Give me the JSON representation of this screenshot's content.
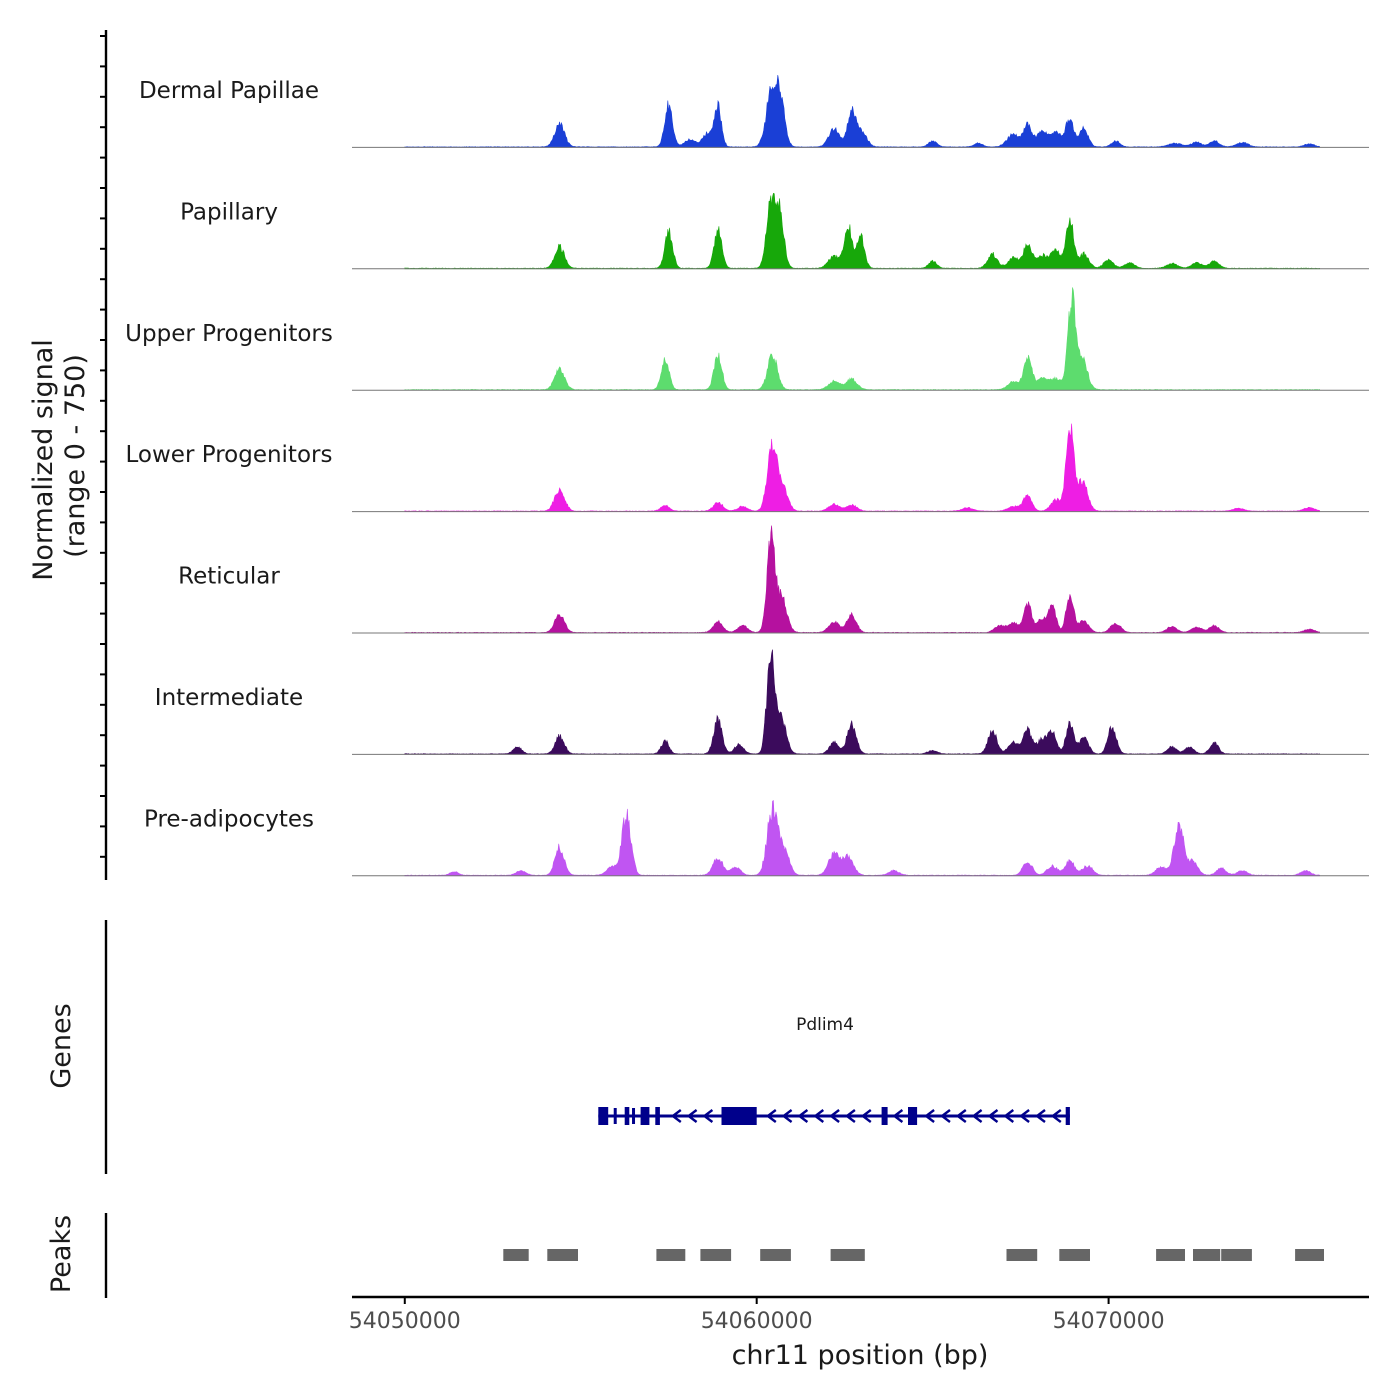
{
  "chart_data": {
    "type": "area",
    "title": "",
    "xlabel": "chr11 position (bp)",
    "ylabel_line1": "Normalized signal",
    "ylabel_line2": "(range 0 - 750)",
    "xlim": [
      54048500,
      54077400
    ],
    "x_ticks": [
      54050000,
      54060000,
      54070000
    ],
    "x_tick_labels": [
      "54050000",
      "54060000",
      "54070000"
    ],
    "signal_range": [
      0,
      750
    ],
    "tracks": [
      {
        "name": "Dermal Papillae",
        "color": "#1a3fd6",
        "peaks": [
          {
            "pos": 54054400,
            "height": 190,
            "width": 140
          },
          {
            "pos": 54057500,
            "height": 350,
            "width": 110
          },
          {
            "pos": 54058100,
            "height": 60,
            "width": 160
          },
          {
            "pos": 54058600,
            "height": 120,
            "width": 140
          },
          {
            "pos": 54058900,
            "height": 330,
            "width": 100
          },
          {
            "pos": 54060450,
            "height": 520,
            "width": 160
          },
          {
            "pos": 54060700,
            "height": 300,
            "width": 120
          },
          {
            "pos": 54062200,
            "height": 150,
            "width": 150
          },
          {
            "pos": 54062700,
            "height": 300,
            "width": 120
          },
          {
            "pos": 54063000,
            "height": 120,
            "width": 140
          },
          {
            "pos": 54065000,
            "height": 50,
            "width": 120
          },
          {
            "pos": 54066300,
            "height": 30,
            "width": 120
          },
          {
            "pos": 54067300,
            "height": 110,
            "width": 180
          },
          {
            "pos": 54067700,
            "height": 170,
            "width": 120
          },
          {
            "pos": 54068100,
            "height": 120,
            "width": 160
          },
          {
            "pos": 54068500,
            "height": 120,
            "width": 160
          },
          {
            "pos": 54068900,
            "height": 250,
            "width": 110
          },
          {
            "pos": 54069300,
            "height": 160,
            "width": 120
          },
          {
            "pos": 54070200,
            "height": 50,
            "width": 120
          },
          {
            "pos": 54071900,
            "height": 30,
            "width": 200
          },
          {
            "pos": 54072500,
            "height": 40,
            "width": 140
          },
          {
            "pos": 54073000,
            "height": 50,
            "width": 140
          },
          {
            "pos": 54073800,
            "height": 40,
            "width": 160
          },
          {
            "pos": 54075700,
            "height": 25,
            "width": 140
          }
        ]
      },
      {
        "name": "Papillary",
        "color": "#17a80a",
        "peaks": [
          {
            "pos": 54054400,
            "height": 180,
            "width": 140
          },
          {
            "pos": 54057500,
            "height": 310,
            "width": 110
          },
          {
            "pos": 54058900,
            "height": 320,
            "width": 110
          },
          {
            "pos": 54060400,
            "height": 560,
            "width": 120
          },
          {
            "pos": 54060650,
            "height": 470,
            "width": 120
          },
          {
            "pos": 54062200,
            "height": 100,
            "width": 160
          },
          {
            "pos": 54062600,
            "height": 360,
            "width": 110
          },
          {
            "pos": 54062950,
            "height": 280,
            "width": 110
          },
          {
            "pos": 54065000,
            "height": 60,
            "width": 120
          },
          {
            "pos": 54066700,
            "height": 120,
            "width": 140
          },
          {
            "pos": 54067300,
            "height": 90,
            "width": 160
          },
          {
            "pos": 54067700,
            "height": 200,
            "width": 120
          },
          {
            "pos": 54068100,
            "height": 110,
            "width": 160
          },
          {
            "pos": 54068500,
            "height": 160,
            "width": 130
          },
          {
            "pos": 54068900,
            "height": 400,
            "width": 110
          },
          {
            "pos": 54069300,
            "height": 120,
            "width": 140
          },
          {
            "pos": 54070000,
            "height": 70,
            "width": 140
          },
          {
            "pos": 54070600,
            "height": 50,
            "width": 140
          },
          {
            "pos": 54071800,
            "height": 40,
            "width": 160
          },
          {
            "pos": 54072500,
            "height": 50,
            "width": 140
          },
          {
            "pos": 54073000,
            "height": 60,
            "width": 140
          }
        ]
      },
      {
        "name": "Upper Progenitors",
        "color": "#5ddc6e",
        "peaks": [
          {
            "pos": 54054400,
            "height": 180,
            "width": 140
          },
          {
            "pos": 54057400,
            "height": 270,
            "width": 110
          },
          {
            "pos": 54058900,
            "height": 300,
            "width": 110
          },
          {
            "pos": 54060450,
            "height": 290,
            "width": 140
          },
          {
            "pos": 54062200,
            "height": 70,
            "width": 160
          },
          {
            "pos": 54062700,
            "height": 90,
            "width": 160
          },
          {
            "pos": 54067300,
            "height": 70,
            "width": 160
          },
          {
            "pos": 54067700,
            "height": 280,
            "width": 110
          },
          {
            "pos": 54068100,
            "height": 90,
            "width": 160
          },
          {
            "pos": 54068500,
            "height": 90,
            "width": 160
          },
          {
            "pos": 54068950,
            "height": 750,
            "width": 110
          },
          {
            "pos": 54069250,
            "height": 250,
            "width": 150
          }
        ]
      },
      {
        "name": "Lower Progenitors",
        "color": "#ee1ee4",
        "peaks": [
          {
            "pos": 54054400,
            "height": 190,
            "width": 140
          },
          {
            "pos": 54057400,
            "height": 50,
            "width": 120
          },
          {
            "pos": 54058900,
            "height": 70,
            "width": 140
          },
          {
            "pos": 54059600,
            "height": 40,
            "width": 140
          },
          {
            "pos": 54060450,
            "height": 570,
            "width": 140
          },
          {
            "pos": 54060750,
            "height": 180,
            "width": 140
          },
          {
            "pos": 54062200,
            "height": 60,
            "width": 150
          },
          {
            "pos": 54062700,
            "height": 50,
            "width": 150
          },
          {
            "pos": 54066000,
            "height": 30,
            "width": 150
          },
          {
            "pos": 54067300,
            "height": 40,
            "width": 160
          },
          {
            "pos": 54067700,
            "height": 140,
            "width": 120
          },
          {
            "pos": 54068500,
            "height": 100,
            "width": 140
          },
          {
            "pos": 54068900,
            "height": 690,
            "width": 110
          },
          {
            "pos": 54069250,
            "height": 250,
            "width": 150
          },
          {
            "pos": 54073700,
            "height": 25,
            "width": 150
          },
          {
            "pos": 54075700,
            "height": 30,
            "width": 150
          }
        ]
      },
      {
        "name": "Reticular",
        "color": "#b5119f",
        "peaks": [
          {
            "pos": 54054400,
            "height": 150,
            "width": 140
          },
          {
            "pos": 54058900,
            "height": 90,
            "width": 140
          },
          {
            "pos": 54059600,
            "height": 60,
            "width": 140
          },
          {
            "pos": 54060400,
            "height": 790,
            "width": 110
          },
          {
            "pos": 54060700,
            "height": 300,
            "width": 150
          },
          {
            "pos": 54062200,
            "height": 90,
            "width": 150
          },
          {
            "pos": 54062700,
            "height": 160,
            "width": 130
          },
          {
            "pos": 54066900,
            "height": 60,
            "width": 140
          },
          {
            "pos": 54067300,
            "height": 80,
            "width": 150
          },
          {
            "pos": 54067700,
            "height": 240,
            "width": 110
          },
          {
            "pos": 54068100,
            "height": 110,
            "width": 140
          },
          {
            "pos": 54068400,
            "height": 210,
            "width": 110
          },
          {
            "pos": 54068900,
            "height": 300,
            "width": 110
          },
          {
            "pos": 54069300,
            "height": 100,
            "width": 140
          },
          {
            "pos": 54070200,
            "height": 80,
            "width": 140
          },
          {
            "pos": 54071800,
            "height": 50,
            "width": 140
          },
          {
            "pos": 54072500,
            "height": 50,
            "width": 140
          },
          {
            "pos": 54073000,
            "height": 60,
            "width": 140
          },
          {
            "pos": 54075700,
            "height": 30,
            "width": 140
          }
        ]
      },
      {
        "name": "Intermediate",
        "color": "#3b0b5c",
        "peaks": [
          {
            "pos": 54053200,
            "height": 60,
            "width": 120
          },
          {
            "pos": 54054400,
            "height": 150,
            "width": 130
          },
          {
            "pos": 54057400,
            "height": 110,
            "width": 110
          },
          {
            "pos": 54058900,
            "height": 290,
            "width": 120
          },
          {
            "pos": 54059500,
            "height": 80,
            "width": 130
          },
          {
            "pos": 54060400,
            "height": 840,
            "width": 110
          },
          {
            "pos": 54060700,
            "height": 300,
            "width": 140
          },
          {
            "pos": 54062200,
            "height": 100,
            "width": 130
          },
          {
            "pos": 54062700,
            "height": 250,
            "width": 130
          },
          {
            "pos": 54065000,
            "height": 30,
            "width": 130
          },
          {
            "pos": 54066700,
            "height": 190,
            "width": 130
          },
          {
            "pos": 54067300,
            "height": 100,
            "width": 150
          },
          {
            "pos": 54067700,
            "height": 200,
            "width": 120
          },
          {
            "pos": 54068100,
            "height": 120,
            "width": 140
          },
          {
            "pos": 54068400,
            "height": 190,
            "width": 120
          },
          {
            "pos": 54068900,
            "height": 260,
            "width": 110
          },
          {
            "pos": 54069300,
            "height": 140,
            "width": 130
          },
          {
            "pos": 54070100,
            "height": 230,
            "width": 120
          },
          {
            "pos": 54071800,
            "height": 60,
            "width": 130
          },
          {
            "pos": 54072300,
            "height": 60,
            "width": 130
          },
          {
            "pos": 54073000,
            "height": 100,
            "width": 120
          }
        ]
      },
      {
        "name": "Pre-adipocytes",
        "color": "#c055f2",
        "peaks": [
          {
            "pos": 54051400,
            "height": 30,
            "width": 120
          },
          {
            "pos": 54053300,
            "height": 40,
            "width": 130
          },
          {
            "pos": 54054400,
            "height": 240,
            "width": 130
          },
          {
            "pos": 54055900,
            "height": 70,
            "width": 160
          },
          {
            "pos": 54056300,
            "height": 500,
            "width": 130
          },
          {
            "pos": 54058900,
            "height": 150,
            "width": 140
          },
          {
            "pos": 54059400,
            "height": 70,
            "width": 140
          },
          {
            "pos": 54060450,
            "height": 560,
            "width": 150
          },
          {
            "pos": 54060800,
            "height": 200,
            "width": 140
          },
          {
            "pos": 54062200,
            "height": 180,
            "width": 160
          },
          {
            "pos": 54062600,
            "height": 150,
            "width": 150
          },
          {
            "pos": 54063900,
            "height": 40,
            "width": 150
          },
          {
            "pos": 54067700,
            "height": 120,
            "width": 130
          },
          {
            "pos": 54068400,
            "height": 80,
            "width": 150
          },
          {
            "pos": 54068900,
            "height": 120,
            "width": 130
          },
          {
            "pos": 54069400,
            "height": 80,
            "width": 150
          },
          {
            "pos": 54071500,
            "height": 70,
            "width": 160
          },
          {
            "pos": 54072000,
            "height": 450,
            "width": 130
          },
          {
            "pos": 54072400,
            "height": 120,
            "width": 140
          },
          {
            "pos": 54073200,
            "height": 60,
            "width": 140
          },
          {
            "pos": 54073800,
            "height": 40,
            "width": 140
          },
          {
            "pos": 54075600,
            "height": 40,
            "width": 140
          }
        ]
      }
    ],
    "genes_label": "Genes",
    "gene": {
      "name": "Pdlim4",
      "start": 54055500,
      "end": 54068900,
      "strand": "-",
      "color": "#00008b",
      "exons": [
        [
          54055500,
          54055780
        ],
        [
          54056250,
          54056380
        ],
        [
          54056700,
          54056950
        ],
        [
          54057120,
          54057250
        ],
        [
          54059000,
          54060000
        ],
        [
          54063550,
          54063720
        ],
        [
          54064300,
          54064560
        ],
        [
          54068780,
          54068900
        ]
      ],
      "ticks": [
        54055980,
        54056500
      ]
    },
    "peaks_label": "Peaks",
    "peak_color": "#666666",
    "peak_regions": [
      [
        54052800,
        54053550
      ],
      [
        54054050,
        54054950
      ],
      [
        54057150,
        54058000
      ],
      [
        54058400,
        54059300
      ],
      [
        54060100,
        54061000
      ],
      [
        54062100,
        54063100
      ],
      [
        54067100,
        54068000
      ],
      [
        54068600,
        54069500
      ],
      [
        54071350,
        54072200
      ],
      [
        54072400,
        54073200
      ],
      [
        54073200,
        54074100
      ],
      [
        54075300,
        54076150
      ]
    ]
  }
}
